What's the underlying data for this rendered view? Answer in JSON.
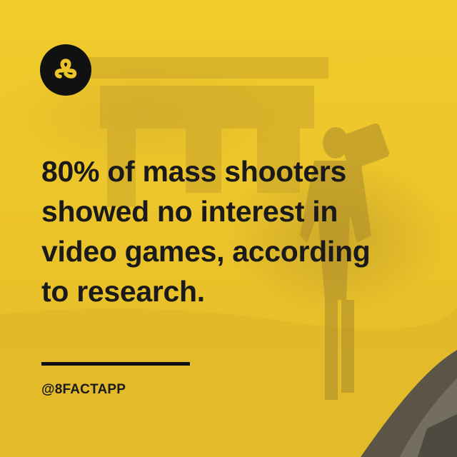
{
  "brand": {
    "logo_icon": "infinity-eight-icon",
    "accent_color": "#ecc52a",
    "ink_color": "#111111"
  },
  "fact": {
    "headline_lines": [
      "80% of mass shooters",
      "showed no interest in",
      "video games, according",
      "to research."
    ],
    "handle": "@8FACTAPP"
  }
}
